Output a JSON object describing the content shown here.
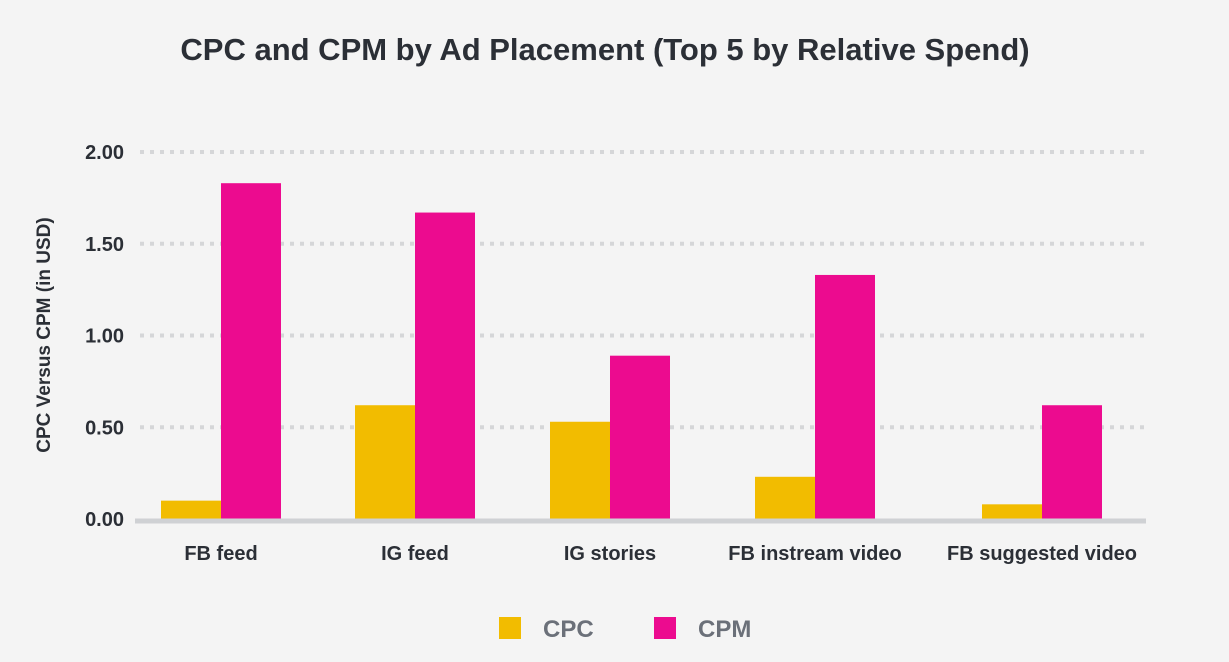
{
  "chart_data": {
    "type": "bar",
    "title": "CPC and CPM by Ad Placement (Top 5 by Relative Spend)",
    "xlabel": "",
    "ylabel": "CPC Versus CPM (in USD)",
    "ylim": [
      0,
      2
    ],
    "yticks": [
      "0.00",
      "0.50",
      "1.00",
      "1.50",
      "2.00"
    ],
    "grid": true,
    "legend_position": "bottom",
    "categories": [
      "FB feed",
      "IG feed",
      "IG stories",
      "FB instream video",
      "FB suggested video"
    ],
    "series": [
      {
        "name": "CPC",
        "color": "#F2BC00",
        "values": [
          0.1,
          0.62,
          0.53,
          0.23,
          0.08
        ]
      },
      {
        "name": "CPM",
        "color": "#EC0B8F",
        "values": [
          1.83,
          1.67,
          0.89,
          1.33,
          0.62
        ]
      }
    ]
  }
}
